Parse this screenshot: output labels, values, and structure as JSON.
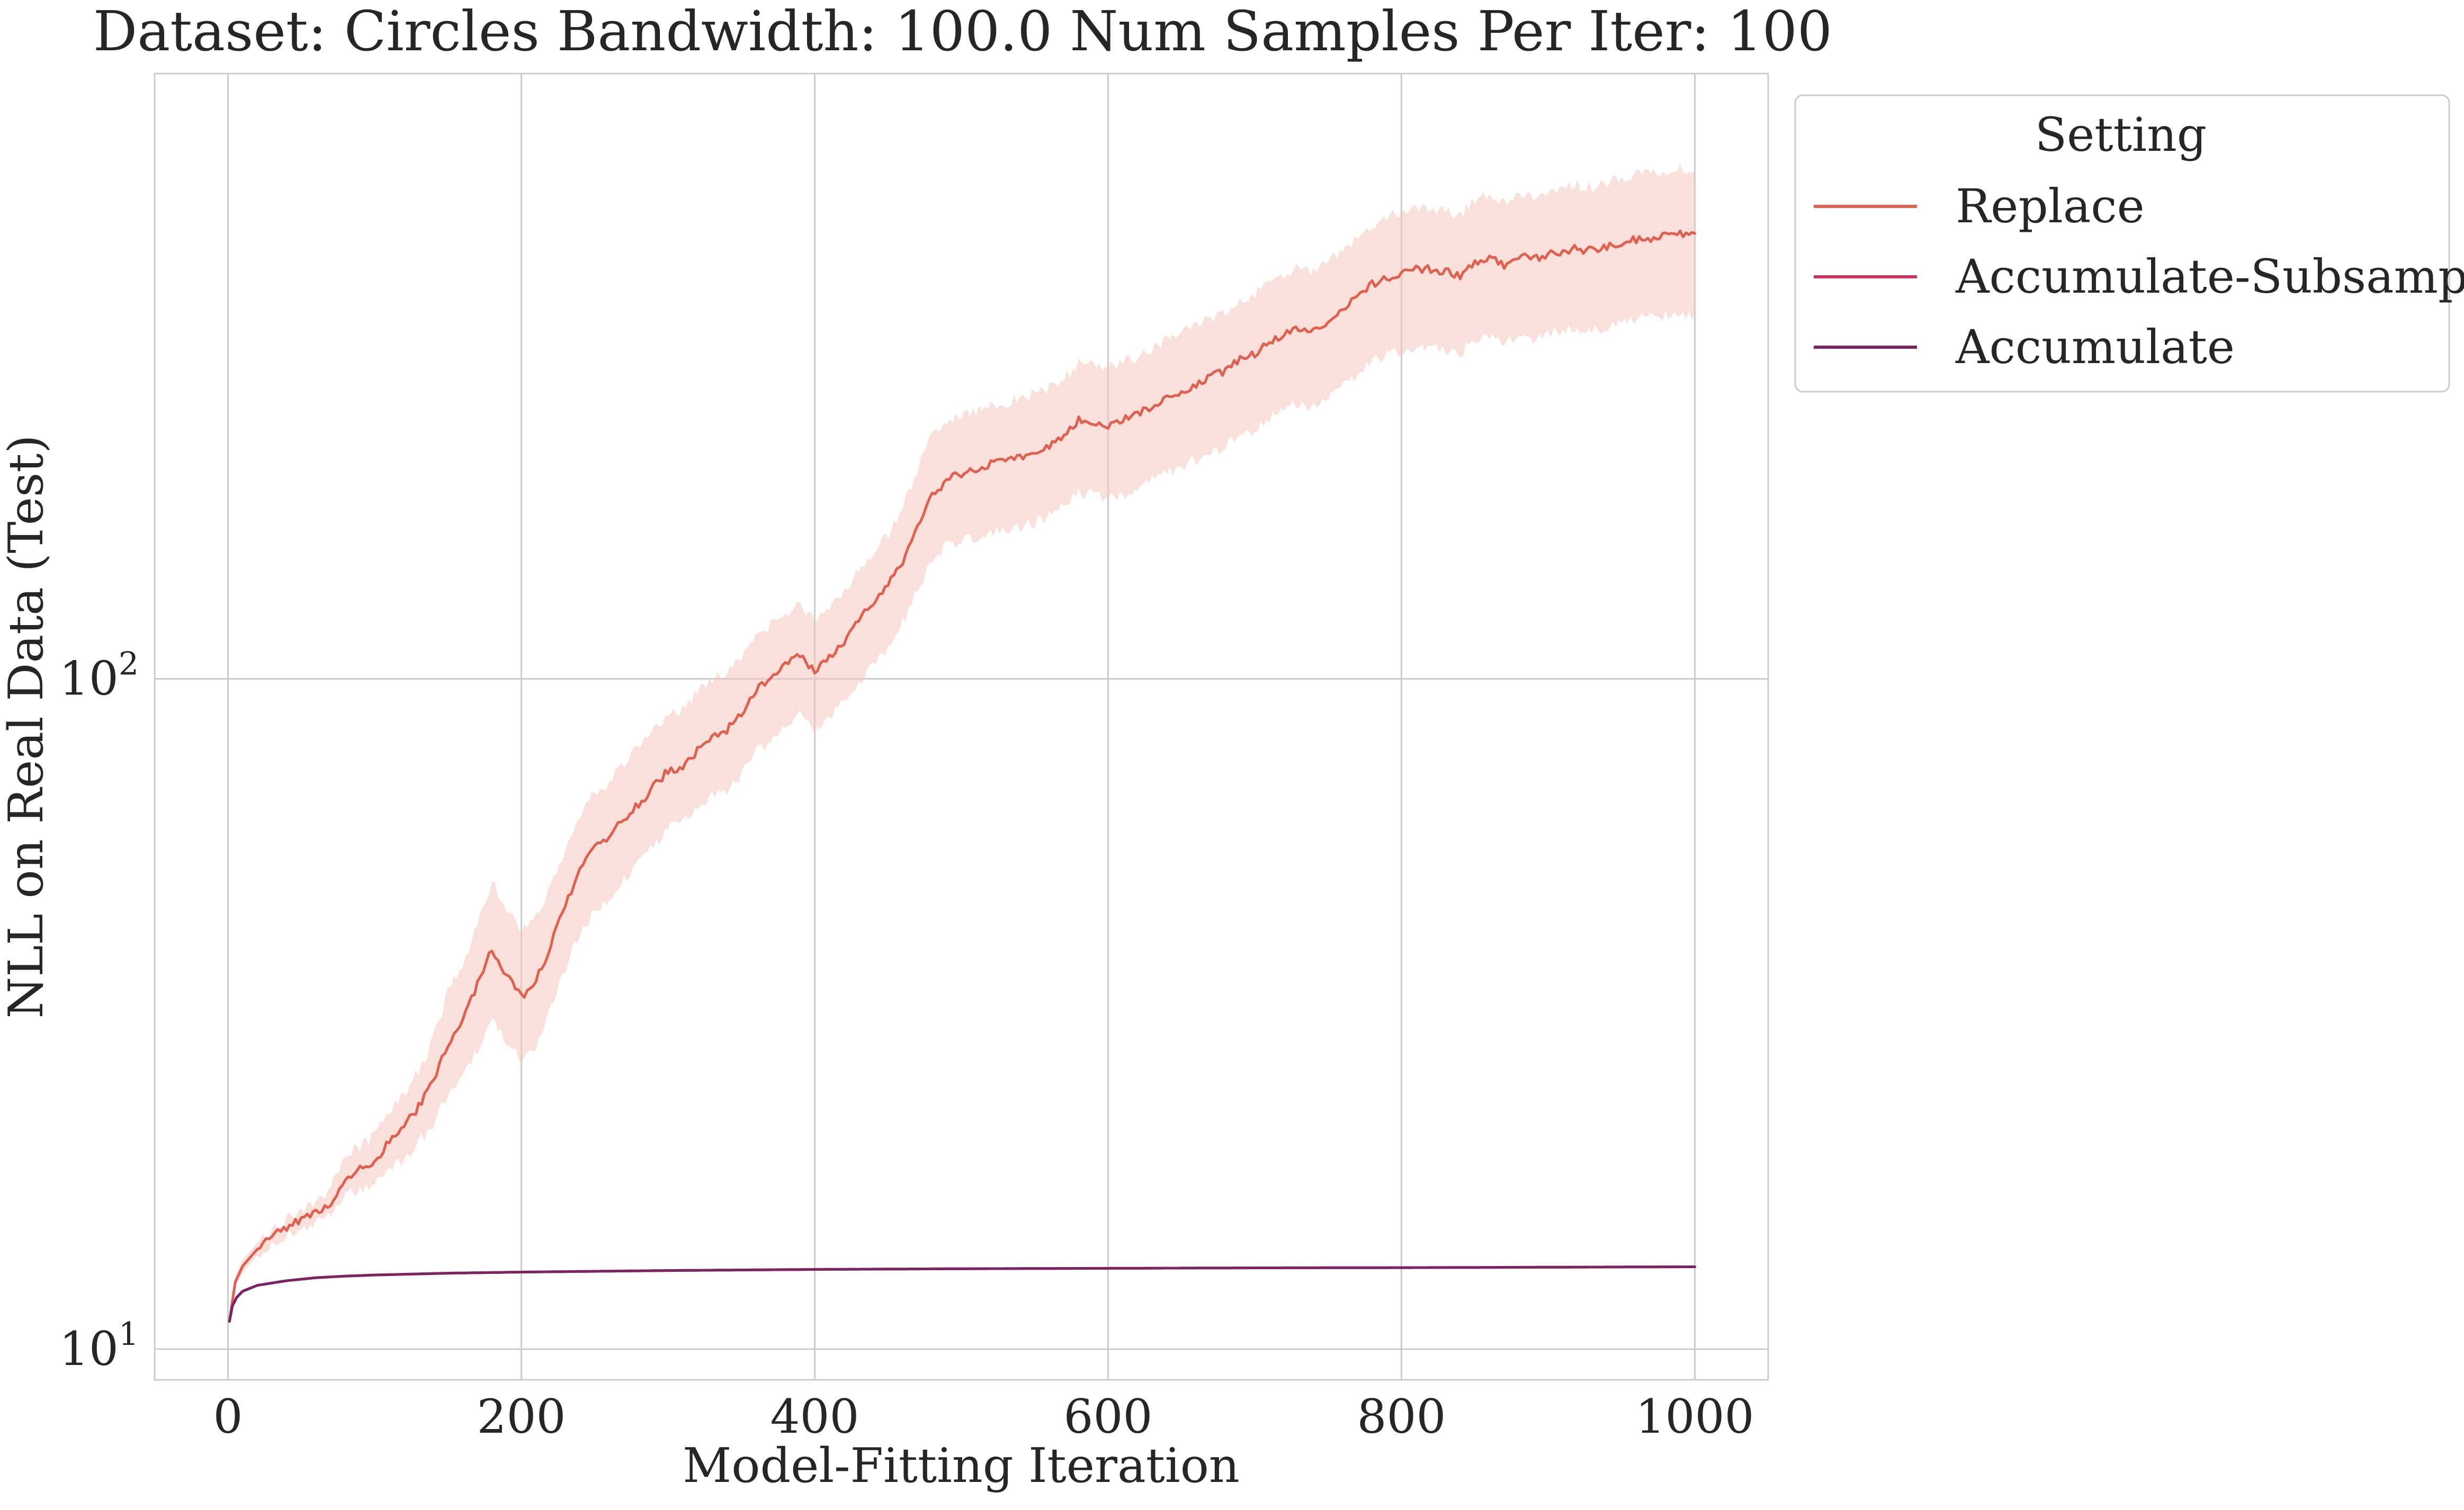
{
  "chart_data": {
    "type": "line",
    "title": "Dataset: Circles Bandwidth: 100.0 Num Samples Per Iter: 100",
    "xlabel": "Model-Fitting Iteration",
    "ylabel": "NLL on Real Data (Test)",
    "xlim": [
      -50,
      1050
    ],
    "ylim": [
      9.0,
      800.0
    ],
    "yscale": "log",
    "xticks": [
      0,
      200,
      400,
      600,
      800,
      1000
    ],
    "xtick_labels": [
      "0",
      "200",
      "400",
      "600",
      "800",
      "1000"
    ],
    "yticks": [
      10,
      100
    ],
    "ytick_labels": [
      {
        "base": "10",
        "exp": "1"
      },
      {
        "base": "10",
        "exp": "2"
      }
    ],
    "grid": true,
    "legend": {
      "title": "Setting",
      "placement": "outside upper right"
    },
    "series": [
      {
        "name": "Replace",
        "color": "#e0604f",
        "band_color": "#f4c6be",
        "points": [
          [
            1,
            11.0,
            11.0,
            11.0
          ],
          [
            5,
            12.6,
            12.4,
            12.8
          ],
          [
            10,
            13.3,
            13.0,
            13.6
          ],
          [
            20,
            14.1,
            13.8,
            14.4
          ],
          [
            30,
            14.7,
            14.4,
            15.0
          ],
          [
            40,
            15.2,
            14.8,
            15.6
          ],
          [
            50,
            15.6,
            15.1,
            16.1
          ],
          [
            60,
            16.0,
            15.4,
            16.6
          ],
          [
            70,
            16.5,
            15.8,
            17.3
          ],
          [
            80,
            18.0,
            17.0,
            19.5
          ],
          [
            90,
            18.6,
            17.4,
            20.0
          ],
          [
            100,
            19.0,
            17.6,
            20.8
          ],
          [
            110,
            20.4,
            18.5,
            22.5
          ],
          [
            120,
            21.5,
            19.2,
            24.0
          ],
          [
            130,
            23.0,
            20.3,
            26.0
          ],
          [
            140,
            25.0,
            21.6,
            29.0
          ],
          [
            150,
            28.5,
            24.0,
            34.0
          ],
          [
            160,
            31.0,
            25.5,
            37.5
          ],
          [
            170,
            35.0,
            28.0,
            43.0
          ],
          [
            180,
            39.5,
            31.0,
            50.0
          ],
          [
            190,
            36.0,
            28.5,
            45.0
          ],
          [
            200,
            33.5,
            27.0,
            42.0
          ],
          [
            210,
            35.5,
            28.5,
            44.5
          ],
          [
            220,
            40.0,
            32.5,
            49.0
          ],
          [
            230,
            46.0,
            37.0,
            56.0
          ],
          [
            240,
            52.0,
            42.0,
            63.0
          ],
          [
            250,
            56.0,
            45.0,
            68.0
          ],
          [
            260,
            58.0,
            47.0,
            70.0
          ],
          [
            270,
            62.0,
            50.0,
            75.0
          ],
          [
            280,
            65.0,
            53.0,
            79.0
          ],
          [
            290,
            69.0,
            56.0,
            84.0
          ],
          [
            300,
            73.0,
            60.0,
            88.0
          ],
          [
            310,
            74.0,
            61.0,
            90.0
          ],
          [
            320,
            78.0,
            64.0,
            96.0
          ],
          [
            330,
            82.0,
            67.0,
            100.0
          ],
          [
            340,
            84.0,
            68.0,
            102.0
          ],
          [
            350,
            89.0,
            72.0,
            108.0
          ],
          [
            360,
            96.0,
            78.0,
            116.0
          ],
          [
            370,
            100.0,
            81.0,
            120.0
          ],
          [
            380,
            105.0,
            85.0,
            125.0
          ],
          [
            390,
            109.0,
            88.0,
            130.0
          ],
          [
            400,
            102.0,
            83.0,
            122.0
          ],
          [
            410,
            108.0,
            88.0,
            129.0
          ],
          [
            420,
            113.0,
            92.0,
            135.0
          ],
          [
            430,
            122.0,
            99.0,
            145.0
          ],
          [
            440,
            130.0,
            105.0,
            154.0
          ],
          [
            450,
            138.0,
            112.0,
            164.0
          ],
          [
            460,
            150.0,
            121.0,
            180.0
          ],
          [
            470,
            168.0,
            135.0,
            205.0
          ],
          [
            480,
            188.0,
            150.0,
            232.0
          ],
          [
            490,
            198.0,
            158.0,
            243.0
          ],
          [
            500,
            202.0,
            160.0,
            248.0
          ],
          [
            510,
            206.0,
            163.0,
            251.0
          ],
          [
            520,
            209.0,
            165.0,
            255.0
          ],
          [
            530,
            211.0,
            167.0,
            258.0
          ],
          [
            540,
            214.0,
            169.0,
            262.0
          ],
          [
            550,
            217.0,
            171.0,
            266.0
          ],
          [
            560,
            223.0,
            175.0,
            272.0
          ],
          [
            570,
            230.0,
            180.0,
            280.0
          ],
          [
            580,
            243.0,
            190.0,
            295.0
          ],
          [
            590,
            242.0,
            188.0,
            295.0
          ],
          [
            600,
            239.0,
            186.0,
            292.0
          ],
          [
            610,
            243.0,
            188.0,
            296.0
          ],
          [
            620,
            248.0,
            193.0,
            303.0
          ],
          [
            630,
            255.0,
            198.0,
            312.0
          ],
          [
            640,
            262.0,
            203.0,
            320.0
          ],
          [
            650,
            268.0,
            207.0,
            328.0
          ],
          [
            660,
            275.0,
            212.0,
            337.0
          ],
          [
            670,
            283.0,
            218.0,
            346.0
          ],
          [
            680,
            288.0,
            222.0,
            353.0
          ],
          [
            690,
            300.0,
            231.0,
            368.0
          ],
          [
            700,
            305.0,
            235.0,
            374.0
          ],
          [
            710,
            318.0,
            245.0,
            390.0
          ],
          [
            720,
            328.0,
            252.0,
            402.0
          ],
          [
            730,
            335.0,
            258.0,
            411.0
          ],
          [
            740,
            330.0,
            254.0,
            405.0
          ],
          [
            750,
            342.0,
            263.0,
            420.0
          ],
          [
            760,
            356.0,
            274.0,
            437.0
          ],
          [
            770,
            370.0,
            284.0,
            455.0
          ],
          [
            780,
            388.0,
            297.0,
            477.0
          ],
          [
            790,
            396.0,
            303.0,
            487.0
          ],
          [
            800,
            405.0,
            310.0,
            498.0
          ],
          [
            810,
            410.0,
            314.0,
            505.0
          ],
          [
            820,
            408.0,
            312.0,
            503.0
          ],
          [
            830,
            405.0,
            310.0,
            500.0
          ],
          [
            840,
            398.0,
            305.0,
            492.0
          ],
          [
            850,
            420.0,
            321.0,
            520.0
          ],
          [
            860,
            425.0,
            325.0,
            527.0
          ],
          [
            870,
            415.0,
            317.0,
            515.0
          ],
          [
            880,
            428.0,
            327.0,
            532.0
          ],
          [
            890,
            422.0,
            322.0,
            525.0
          ],
          [
            900,
            430.0,
            328.0,
            535.0
          ],
          [
            910,
            435.0,
            332.0,
            541.0
          ],
          [
            920,
            438.0,
            334.0,
            545.0
          ],
          [
            930,
            435.0,
            331.0,
            542.0
          ],
          [
            940,
            442.0,
            336.0,
            551.0
          ],
          [
            950,
            448.0,
            341.0,
            559.0
          ],
          [
            960,
            452.0,
            344.0,
            564.0
          ],
          [
            970,
            455.0,
            346.0,
            568.0
          ],
          [
            980,
            458.0,
            348.0,
            573.0
          ],
          [
            990,
            460.0,
            349.0,
            576.0
          ],
          [
            1000,
            462.0,
            350.0,
            578.0
          ]
        ]
      },
      {
        "name": "Accumulate-Subsample",
        "color": "#c2375e",
        "points": [
          [
            1,
            11.0
          ],
          [
            3,
            11.6
          ],
          [
            6,
            11.95
          ],
          [
            10,
            12.2
          ],
          [
            20,
            12.45
          ],
          [
            40,
            12.65
          ],
          [
            60,
            12.78
          ],
          [
            80,
            12.85
          ],
          [
            100,
            12.9
          ],
          [
            150,
            12.98
          ],
          [
            200,
            13.03
          ],
          [
            300,
            13.1
          ],
          [
            400,
            13.15
          ],
          [
            500,
            13.18
          ],
          [
            600,
            13.2
          ],
          [
            700,
            13.22
          ],
          [
            800,
            13.23
          ],
          [
            900,
            13.25
          ],
          [
            1000,
            13.27
          ]
        ]
      },
      {
        "name": "Accumulate",
        "color": "#7c2463",
        "points": [
          [
            1,
            11.0
          ],
          [
            3,
            11.6
          ],
          [
            6,
            11.95
          ],
          [
            10,
            12.2
          ],
          [
            20,
            12.45
          ],
          [
            40,
            12.65
          ],
          [
            60,
            12.78
          ],
          [
            80,
            12.85
          ],
          [
            100,
            12.9
          ],
          [
            150,
            12.98
          ],
          [
            200,
            13.03
          ],
          [
            300,
            13.1
          ],
          [
            400,
            13.15
          ],
          [
            500,
            13.18
          ],
          [
            600,
            13.2
          ],
          [
            700,
            13.22
          ],
          [
            800,
            13.23
          ],
          [
            900,
            13.25
          ],
          [
            1000,
            13.27
          ]
        ]
      }
    ]
  }
}
